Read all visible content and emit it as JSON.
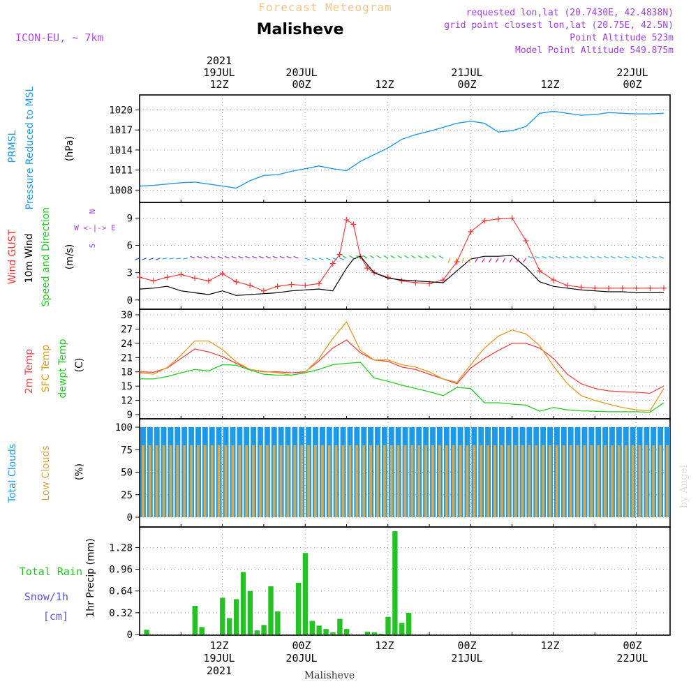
{
  "header": {
    "subtitle": "Forecast Meteogram",
    "location": "Malisheve",
    "model": "ICON-EU, ~ 7km",
    "requested": "requested lon,lat (20.7430E, 42.4838N)",
    "gridpoint": "grid point closest lon,lat (20.75E, 42.5N)",
    "point_alt": "Point Altitude 523m",
    "model_alt": "Model Point Altitude 549.875m",
    "watermark": "by Angel",
    "footer": "Malisheve"
  },
  "colors": {
    "pressure": "#2299e6",
    "gust": "#ee3333",
    "wind": "#000000",
    "temp2m": "#ee4444",
    "sfc": "#e09a20",
    "dewpt": "#22cc22",
    "total_clouds": "#1a9ae8",
    "low_clouds": "#d9a848",
    "rain": "#22c322",
    "snow": "#5555dd",
    "purple": "#a040e0"
  },
  "chart_data": [
    {
      "type": "line",
      "panel": "pressure",
      "ylabel": [
        "PRMSL",
        "Pressure Reduced to MSL",
        "(hPa)"
      ],
      "yticks": [
        1008,
        1011,
        1014,
        1017,
        1020
      ],
      "ylim": [
        1007.2,
        1021.2
      ],
      "grid": true,
      "series": [
        {
          "name": "PRMSL",
          "x": [
            0,
            2,
            4,
            6,
            8,
            10,
            12,
            14,
            16,
            18,
            20,
            22,
            24,
            26,
            28,
            30,
            32,
            34,
            36,
            38,
            40,
            42,
            44,
            46,
            48,
            50,
            52,
            54,
            56,
            58,
            60,
            62,
            64,
            66,
            68,
            70,
            72,
            74,
            76
          ],
          "values": [
            1008.6,
            1008.7,
            1008.9,
            1009.1,
            1009.2,
            1008.9,
            1008.6,
            1008.3,
            1009.4,
            1010.2,
            1010.3,
            1010.8,
            1011.2,
            1011.6,
            1011.2,
            1010.9,
            1012.3,
            1013.3,
            1014.3,
            1015.6,
            1016.3,
            1016.8,
            1017.4,
            1018.0,
            1018.3,
            1018.0,
            1016.7,
            1016.9,
            1017.5,
            1019.5,
            1019.8,
            1019.5,
            1019.2,
            1019.3,
            1019.6,
            1019.5,
            1019.4,
            1019.4,
            1019.5
          ]
        }
      ]
    },
    {
      "type": "line",
      "panel": "wind",
      "ylabel": [
        "Wind GUST",
        "10m Wind",
        "Speed and Direction",
        "(m/s)"
      ],
      "compass": [
        "N",
        "W <-|-> E",
        "S"
      ],
      "yticks": [
        0,
        3,
        6,
        9
      ],
      "ylim": [
        -0.4,
        9.8
      ],
      "grid": true,
      "series": [
        {
          "name": "Wind GUST",
          "x": [
            0,
            2,
            4,
            6,
            8,
            10,
            12,
            14,
            16,
            18,
            20,
            22,
            24,
            26,
            28,
            29,
            30,
            31,
            32,
            33,
            34,
            36,
            38,
            40,
            42,
            44,
            46,
            48,
            50,
            52,
            54,
            56,
            58,
            60,
            62,
            64,
            66,
            68,
            70,
            72,
            74,
            76
          ],
          "values": [
            2.5,
            2.1,
            2.5,
            2.8,
            2.4,
            2.1,
            2.9,
            2.0,
            1.6,
            1.0,
            1.5,
            1.7,
            1.6,
            1.8,
            4.0,
            5.0,
            8.8,
            8.3,
            4.8,
            3.5,
            3.0,
            2.5,
            2.1,
            1.9,
            1.8,
            2.2,
            4.2,
            7.5,
            8.7,
            8.9,
            9.0,
            6.5,
            3.2,
            2.2,
            1.6,
            1.4,
            1.3,
            1.3,
            1.3,
            1.3,
            1.3,
            1.3
          ]
        },
        {
          "name": "10m Wind",
          "x": [
            0,
            2,
            4,
            6,
            8,
            10,
            12,
            14,
            16,
            18,
            20,
            22,
            24,
            26,
            28,
            30,
            31,
            32,
            34,
            36,
            38,
            40,
            42,
            44,
            46,
            48,
            50,
            52,
            54,
            56,
            58,
            60,
            62,
            64,
            66,
            68,
            70,
            72,
            74,
            76
          ],
          "values": [
            1.2,
            1.3,
            1.5,
            1.0,
            0.8,
            0.6,
            1.0,
            0.5,
            0.6,
            0.7,
            0.8,
            1.0,
            1.1,
            1.2,
            1.0,
            3.5,
            4.5,
            4.8,
            3.0,
            2.4,
            2.2,
            2.1,
            2.0,
            1.9,
            3.2,
            4.5,
            4.8,
            4.8,
            4.9,
            3.6,
            2.0,
            1.5,
            1.3,
            1.1,
            1.0,
            0.9,
            0.9,
            0.8,
            0.8,
            0.8
          ]
        }
      ]
    },
    {
      "type": "line",
      "panel": "temperature",
      "ylabel": [
        "2m Temp",
        "SFC Temp",
        "dewpt Temp",
        "(C)"
      ],
      "yticks": [
        9,
        12,
        15,
        18,
        21,
        24,
        27,
        30
      ],
      "ylim": [
        9,
        30
      ],
      "grid": true,
      "series": [
        {
          "name": "2m Temp",
          "x": [
            0,
            2,
            4,
            6,
            8,
            10,
            12,
            14,
            16,
            18,
            20,
            22,
            24,
            26,
            28,
            30,
            32,
            34,
            36,
            38,
            40,
            42,
            44,
            46,
            48,
            50,
            52,
            54,
            56,
            58,
            60,
            62,
            64,
            66,
            68,
            70,
            72,
            74,
            76
          ],
          "values": [
            18.0,
            17.9,
            18.8,
            20.8,
            22.8,
            22.2,
            21.2,
            19.8,
            18.5,
            18.0,
            18.0,
            17.8,
            18.0,
            20.3,
            23.0,
            24.7,
            22.0,
            20.5,
            20.2,
            19.0,
            18.5,
            17.5,
            16.5,
            15.5,
            18.8,
            20.8,
            22.5,
            24.0,
            24.0,
            23.0,
            20.8,
            17.5,
            15.5,
            14.5,
            14.0,
            13.8,
            13.7,
            13.5,
            15.0
          ]
        },
        {
          "name": "SFC Temp",
          "x": [
            0,
            2,
            4,
            6,
            8,
            10,
            12,
            14,
            16,
            18,
            20,
            22,
            24,
            26,
            28,
            30,
            32,
            34,
            36,
            38,
            40,
            42,
            44,
            46,
            48,
            50,
            52,
            54,
            56,
            58,
            60,
            62,
            64,
            66,
            68,
            70,
            72,
            74,
            76
          ],
          "values": [
            17.8,
            17.5,
            18.9,
            21.5,
            24.5,
            24.5,
            22.7,
            20.1,
            18.5,
            18.1,
            17.8,
            17.3,
            17.9,
            20.8,
            25.0,
            28.5,
            22.5,
            20.5,
            20.5,
            19.5,
            19.0,
            18.0,
            16.5,
            15.8,
            19.5,
            23.0,
            25.5,
            26.8,
            26.0,
            23.5,
            19.2,
            15.5,
            13.0,
            12.0,
            11.2,
            10.5,
            10.0,
            9.8,
            14.5
          ]
        },
        {
          "name": "dewpt Temp",
          "x": [
            0,
            2,
            4,
            6,
            8,
            10,
            12,
            14,
            16,
            18,
            20,
            22,
            24,
            26,
            28,
            30,
            32,
            34,
            36,
            38,
            40,
            42,
            44,
            46,
            48,
            50,
            52,
            54,
            56,
            58,
            60,
            62,
            64,
            66,
            68,
            70,
            72,
            74,
            76
          ],
          "values": [
            16.5,
            16.5,
            17.0,
            17.8,
            18.5,
            18.2,
            19.5,
            19.4,
            18.4,
            17.5,
            17.3,
            17.3,
            17.8,
            18.5,
            19.5,
            19.8,
            20.0,
            16.7,
            16.0,
            15.2,
            14.5,
            13.8,
            13.0,
            14.7,
            14.5,
            11.5,
            11.5,
            11.2,
            11.0,
            9.7,
            10.5,
            10.0,
            9.8,
            9.7,
            9.6,
            9.6,
            9.6,
            9.5,
            11.5
          ]
        }
      ]
    },
    {
      "type": "bar",
      "panel": "clouds",
      "ylabel": [
        "Total Clouds",
        "Low Clouds",
        "(%)"
      ],
      "yticks": [
        0,
        25,
        50,
        75,
        100
      ],
      "ylim": [
        0,
        100
      ],
      "grid": true,
      "x": [
        0,
        1,
        2,
        3,
        4,
        5,
        6,
        7,
        8,
        9,
        10,
        11,
        12,
        13,
        14,
        15,
        16,
        17,
        18,
        19,
        20,
        21,
        22,
        23,
        24,
        25,
        26,
        27,
        28,
        29,
        30,
        31,
        32,
        33,
        34,
        35,
        36,
        37,
        38,
        39,
        40,
        41,
        42,
        43,
        44,
        45,
        46,
        47,
        48,
        49,
        50,
        51,
        52,
        53,
        54,
        55,
        56,
        57,
        58,
        59,
        60,
        61,
        62,
        63,
        64,
        65,
        66,
        67,
        68,
        69,
        70,
        71,
        72,
        73,
        74,
        75,
        76
      ],
      "series": [
        {
          "name": "Total Clouds",
          "values": [
            100,
            100,
            100,
            100,
            100,
            100,
            100,
            100,
            100,
            100,
            100,
            100,
            100,
            100,
            100,
            100,
            100,
            100,
            100,
            100,
            100,
            100,
            100,
            100,
            100,
            100,
            100,
            100,
            100,
            100,
            100,
            100,
            100,
            100,
            100,
            100,
            100,
            100,
            100,
            100,
            100,
            100,
            100,
            100,
            100,
            100,
            100,
            100,
            100,
            100,
            100,
            100,
            100,
            100,
            100,
            100,
            100,
            100,
            100,
            100,
            100,
            100,
            100,
            100,
            100,
            100,
            100,
            100,
            100,
            100,
            100,
            100,
            100,
            100,
            100,
            100,
            100
          ]
        },
        {
          "name": "Low Clouds",
          "values": [
            80,
            80,
            80,
            80,
            80,
            80,
            80,
            80,
            80,
            80,
            80,
            80,
            80,
            80,
            80,
            80,
            80,
            80,
            80,
            80,
            80,
            80,
            80,
            80,
            80,
            80,
            80,
            80,
            80,
            80,
            80,
            80,
            80,
            80,
            80,
            80,
            80,
            80,
            80,
            80,
            80,
            80,
            80,
            80,
            80,
            80,
            80,
            80,
            80,
            80,
            80,
            80,
            80,
            80,
            80,
            80,
            80,
            80,
            80,
            80,
            80,
            80,
            80,
            80,
            80,
            80,
            80,
            80,
            80,
            80,
            80,
            80,
            80,
            80,
            80,
            80,
            80
          ]
        }
      ]
    },
    {
      "type": "bar",
      "panel": "precip",
      "ylabel": [
        "1hr Precip (mm)"
      ],
      "left_labels": [
        "Total Rain",
        "Snow/1h",
        "[cm]"
      ],
      "yticks": [
        0,
        0.32,
        0.64,
        0.96,
        1.28
      ],
      "ylim": [
        0,
        1.5
      ],
      "grid": true,
      "x": [
        1,
        8,
        9,
        12,
        13,
        14,
        15,
        16,
        17,
        18,
        19,
        20,
        23,
        24,
        25,
        26,
        27,
        28,
        29,
        30,
        33,
        34,
        35,
        36,
        37,
        38,
        39,
        40,
        41,
        42,
        43
      ],
      "series": [
        {
          "name": "Total Rain",
          "values": [
            0.07,
            0.42,
            0.11,
            0.54,
            0.24,
            0.52,
            0.92,
            0.64,
            0.06,
            0.14,
            0.71,
            0.34,
            0.76,
            1.2,
            0.2,
            0.13,
            0.08,
            0.03,
            0.23,
            0.08,
            0.04,
            0.03,
            0.01,
            0.26,
            1.52,
            0.17,
            0.32,
            0,
            0,
            0,
            0
          ]
        }
      ]
    }
  ],
  "x_axis": {
    "top_labels": [
      {
        "h": 12,
        "line1": "2021",
        "line2": "19JUL",
        "line3": "12Z"
      },
      {
        "h": 24,
        "line1": "",
        "line2": "20JUL",
        "line3": "00Z"
      },
      {
        "h": 36,
        "line1": "",
        "line2": "",
        "line3": "12Z"
      },
      {
        "h": 48,
        "line1": "",
        "line2": "21JUL",
        "line3": "00Z"
      },
      {
        "h": 60,
        "line1": "",
        "line2": "",
        "line3": "12Z"
      },
      {
        "h": 72,
        "line1": "",
        "line2": "22JUL",
        "line3": "00Z"
      }
    ],
    "bottom_labels": [
      {
        "h": 12,
        "line1": "12Z",
        "line2": "19JUL",
        "line3": "2021"
      },
      {
        "h": 24,
        "line1": "00Z",
        "line2": "20JUL",
        "line3": ""
      },
      {
        "h": 36,
        "line1": "12Z",
        "line2": "",
        "line3": ""
      },
      {
        "h": 48,
        "line1": "00Z",
        "line2": "21JUL",
        "line3": ""
      },
      {
        "h": 60,
        "line1": "12Z",
        "line2": "",
        "line3": ""
      },
      {
        "h": 72,
        "line1": "00Z",
        "line2": "22JUL",
        "line3": ""
      }
    ]
  }
}
